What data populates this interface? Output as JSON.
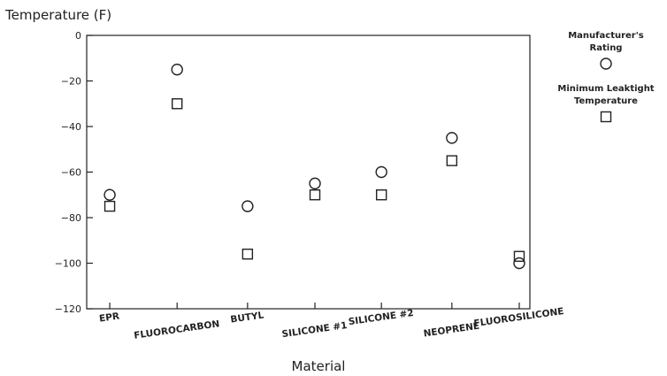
{
  "chart_data": {
    "type": "scatter",
    "title": "",
    "ylabel": "Temperature (F)",
    "xlabel": "Material",
    "ylim": [
      -120,
      0
    ],
    "yticks": [
      0,
      -20,
      -40,
      -60,
      -80,
      -100,
      -120
    ],
    "grid": false,
    "legend_position": "top-right, outside plot",
    "categories": [
      "EPR",
      "FLUOROCARBON",
      "BUTYL",
      "SILICONE #1",
      "SILICONE #2",
      "NEOPRENE",
      "FLUOROSILICONE"
    ],
    "series": [
      {
        "name": "Manufacturer's Rating",
        "marker": "circle",
        "values": [
          -70,
          -15,
          -75,
          -65,
          -60,
          -45,
          -100
        ]
      },
      {
        "name": "Minimum Leaktight Temperature",
        "marker": "square",
        "values": [
          -75,
          -30,
          -96,
          -70,
          -70,
          -55,
          -97
        ]
      }
    ]
  },
  "legend": {
    "rating_label": "Manufacturer's\nRating",
    "leaktight_label": "Minimum Leaktight\nTemperature"
  },
  "colors": {
    "ink": "#222222",
    "background": "#ffffff"
  }
}
